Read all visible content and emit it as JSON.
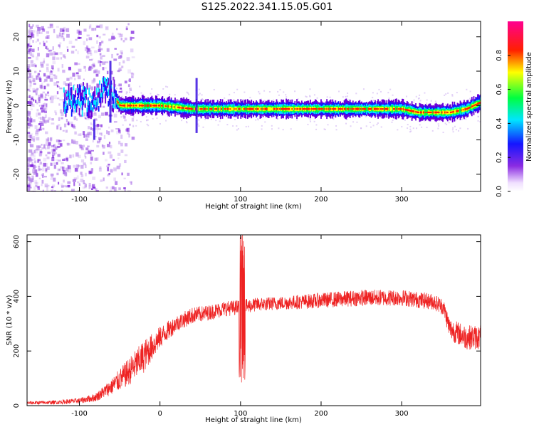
{
  "title": "S125.2022.341.15.05.G01",
  "chart_data": [
    {
      "type": "heatmap",
      "xlabel": "Height of straight line (km)",
      "ylabel": "Frequency (Hz)",
      "xlim": [
        -165,
        398
      ],
      "ylim": [
        -25,
        24.5
      ],
      "x_ticks": [
        -100,
        0,
        100,
        200,
        300
      ],
      "y_ticks": [
        -20,
        -10,
        0,
        10,
        20
      ],
      "colorbar": {
        "label": "Normalized spectral amplitude",
        "range": [
          0,
          1
        ],
        "ticks": [
          "0.0",
          "0.2",
          "0.4",
          "0.6",
          "0.8"
        ],
        "colormap": "rainbow (white → violet → blue → cyan → green → yellow → red → magenta)"
      },
      "ridge": {
        "x": [
          -95,
          -80,
          -70,
          -60,
          -50,
          -30,
          0,
          40,
          80,
          140,
          200,
          250,
          300,
          320,
          360,
          380,
          398
        ],
        "freq": [
          1.5,
          2,
          4,
          3,
          0,
          0,
          0,
          -1,
          -1,
          -1,
          -1,
          -1,
          -1,
          -2,
          -2,
          -1,
          1
        ],
        "note": "peak amplitude ~1.0 near 0 Hz from about -55 km to 398 km; diffuse noise below -60 km"
      }
    },
    {
      "type": "line",
      "xlabel": "Height of straight line (km)",
      "ylabel": "SNR (10 * v/v)",
      "xlim": [
        -165,
        398
      ],
      "ylim": [
        0,
        625
      ],
      "x_ticks": [
        -100,
        0,
        100,
        200,
        300
      ],
      "y_ticks": [
        0,
        200,
        400,
        600
      ],
      "color": "#ee2222",
      "series_envelope": {
        "x": [
          -165,
          -130,
          -100,
          -80,
          -60,
          -40,
          -20,
          0,
          20,
          40,
          60,
          80,
          100,
          120,
          150,
          200,
          250,
          300,
          340,
          352,
          360,
          380,
          398
        ],
        "mean": [
          10,
          12,
          18,
          30,
          70,
          120,
          180,
          250,
          300,
          330,
          340,
          355,
          360,
          370,
          375,
          385,
          395,
          395,
          380,
          360,
          280,
          250,
          250
        ],
        "noise": [
          6,
          7,
          10,
          15,
          30,
          50,
          60,
          40,
          30,
          30,
          28,
          28,
          28,
          25,
          25,
          28,
          30,
          30,
          30,
          30,
          40,
          45,
          45
        ],
        "spike": {
          "x": 102,
          "max": 625,
          "min": 60
        }
      }
    }
  ]
}
